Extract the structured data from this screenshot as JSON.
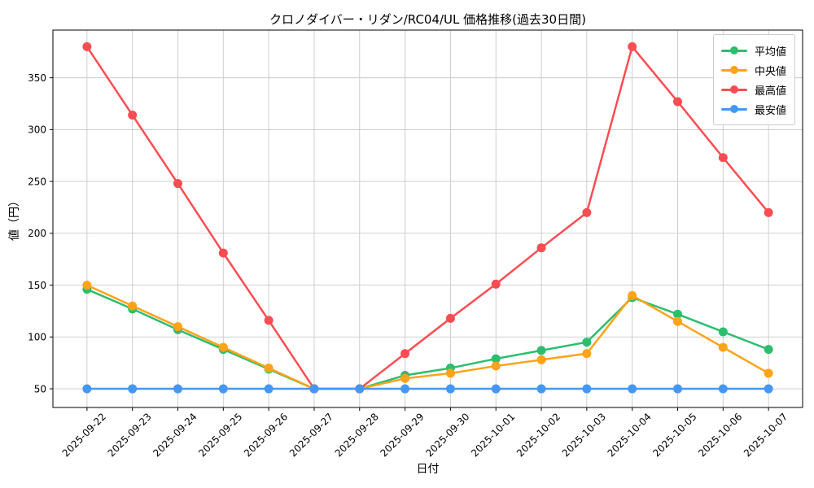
{
  "chart_data": {
    "type": "line",
    "title": "クロノダイバー・リダン/RC04/UL 価格推移(過去30日間)",
    "xlabel": "日付",
    "ylabel": "値（円）",
    "ylim": [
      32,
      396
    ],
    "yticks": [
      50,
      100,
      150,
      200,
      250,
      300,
      350
    ],
    "grid": true,
    "legend_position": "upper right",
    "categories": [
      "2025-09-22",
      "2025-09-23",
      "2025-09-24",
      "2025-09-25",
      "2025-09-26",
      "2025-09-27",
      "2025-09-28",
      "2025-09-29",
      "2025-09-30",
      "2025-10-01",
      "2025-10-02",
      "2025-10-03",
      "2025-10-04",
      "2025-10-05",
      "2025-10-06",
      "2025-10-07"
    ],
    "series": [
      {
        "key": "average",
        "name": "平均値",
        "color": "#2dbd6e",
        "values": [
          146,
          127,
          107,
          88,
          69,
          50,
          50,
          63,
          70,
          79,
          87,
          95,
          138,
          122,
          105,
          88
        ]
      },
      {
        "key": "median",
        "name": "中央値",
        "color": "#ffa319",
        "values": [
          150,
          130,
          110,
          90,
          70,
          50,
          50,
          60,
          65,
          72,
          78,
          84,
          140,
          115,
          90,
          65
        ]
      },
      {
        "key": "highest",
        "name": "最高値",
        "color": "#fa4d53",
        "values": [
          380,
          314,
          248,
          181,
          116,
          50,
          50,
          84,
          118,
          151,
          186,
          220,
          380,
          327,
          273,
          220
        ]
      },
      {
        "key": "lowest",
        "name": "最安値",
        "color": "#4597f7",
        "values": [
          50,
          50,
          50,
          50,
          50,
          50,
          50,
          50,
          50,
          50,
          50,
          50,
          50,
          50,
          50,
          50
        ]
      }
    ]
  }
}
